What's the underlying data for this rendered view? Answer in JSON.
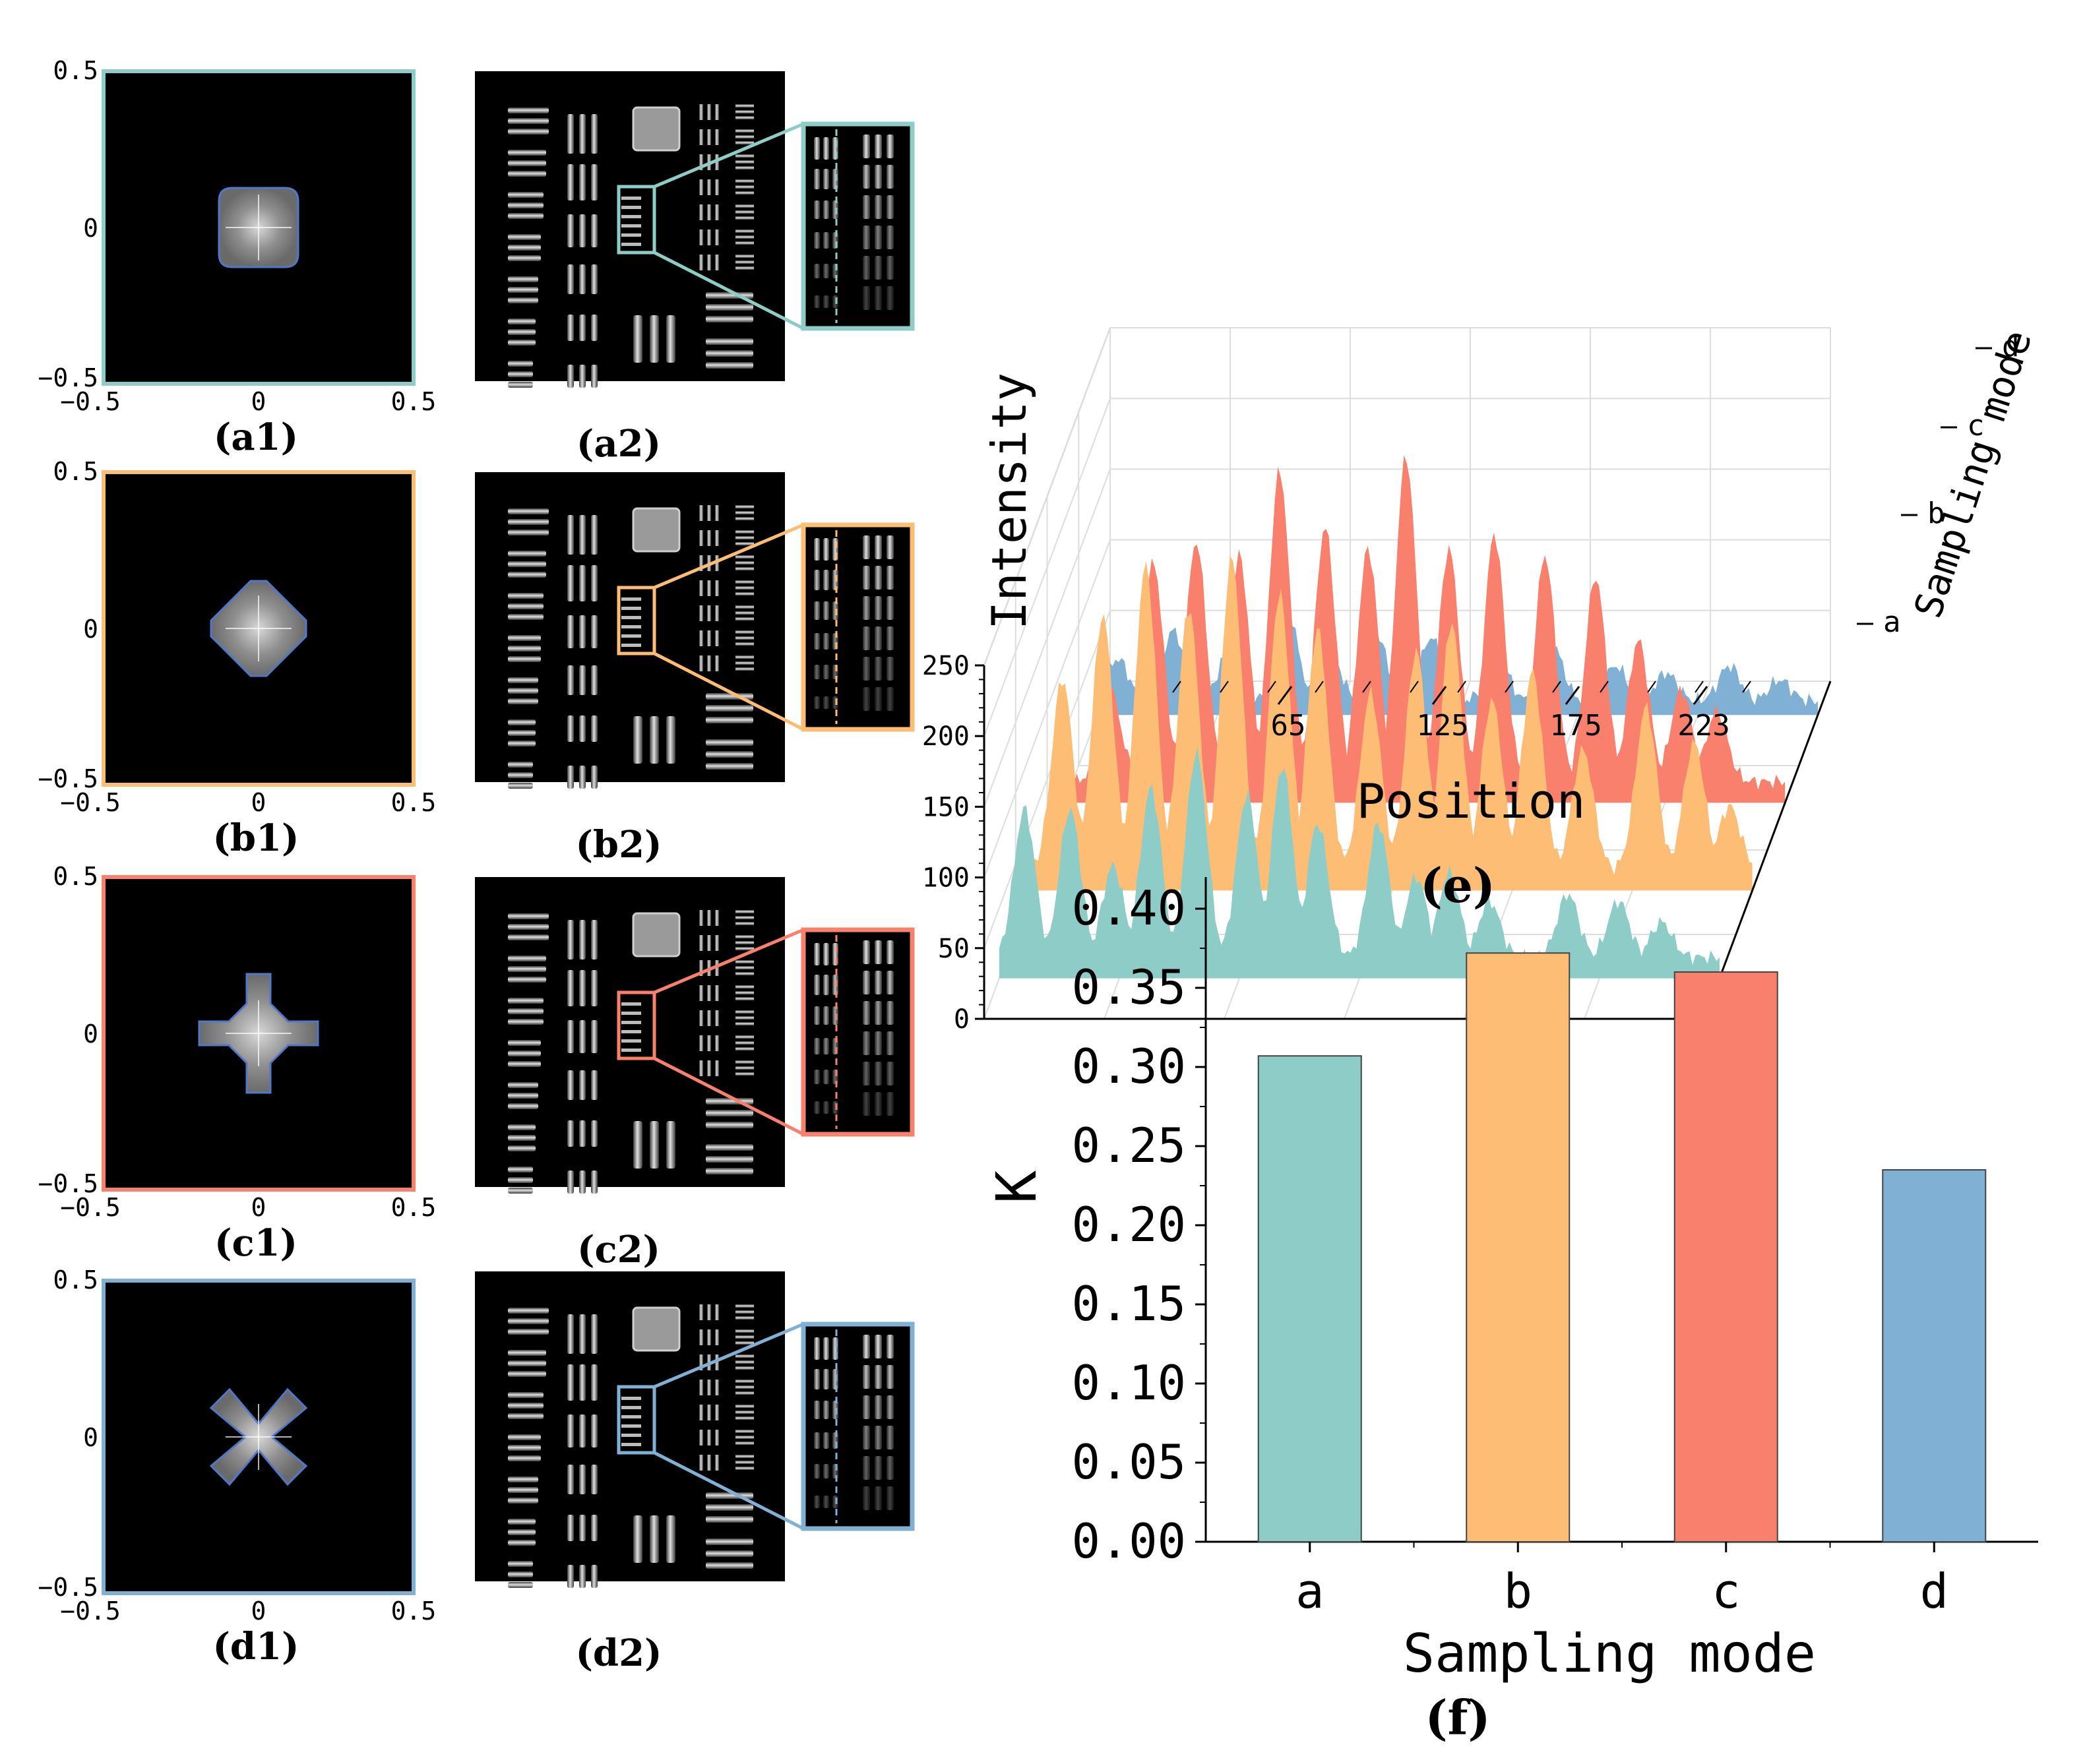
{
  "colors": {
    "a": "#8ecdc7",
    "b": "#fdbd74",
    "c": "#f8806c",
    "d": "#80b0d3",
    "panel_bg": "#000000"
  },
  "spectrum_panels": [
    {
      "label": "(a1)",
      "mode": "a",
      "shape": "square",
      "ticks": [
        "0.5",
        "0",
        "−0.5"
      ],
      "xticks": [
        "−0.5",
        "0",
        "0.5"
      ]
    },
    {
      "label": "(b1)",
      "mode": "b",
      "shape": "diamond",
      "ticks": [
        "0.5",
        "0",
        "−0.5"
      ],
      "xticks": [
        "−0.5",
        "0",
        "0.5"
      ]
    },
    {
      "label": "(c1)",
      "mode": "c",
      "shape": "plus",
      "ticks": [
        "0.5",
        "0",
        "−0.5"
      ],
      "xticks": [
        "−0.5",
        "0",
        "0.5"
      ]
    },
    {
      "label": "(d1)",
      "mode": "d",
      "shape": "x-cross",
      "ticks": [
        "0.5",
        "0",
        "−0.5"
      ],
      "xticks": [
        "−0.5",
        "0",
        "0.5"
      ]
    }
  ],
  "recon_panels": [
    {
      "label": "(a2)",
      "mode": "a"
    },
    {
      "label": "(b2)",
      "mode": "b"
    },
    {
      "label": "(c2)",
      "mode": "c"
    },
    {
      "label": "(d2)",
      "mode": "d"
    }
  ],
  "chart_data": [
    {
      "type": "area",
      "panel_label": "(e)",
      "title": "",
      "xlabel": "Position",
      "ylabel": "Intensity",
      "zlabel": "Sampling mode",
      "x_ticks": [
        "65",
        "125",
        "175",
        "223"
      ],
      "y_ticks": [
        "0",
        "50",
        "100",
        "150",
        "200",
        "250"
      ],
      "ylim": [
        0,
        250
      ],
      "xlim": [
        0,
        285
      ],
      "series": [
        {
          "name": "a",
          "peaks": [
            [
              10,
              120
            ],
            [
              28,
              120
            ],
            [
              45,
              80
            ],
            [
              60,
              135
            ],
            [
              78,
              160
            ],
            [
              98,
              130
            ],
            [
              112,
              150
            ],
            [
              126,
              110
            ],
            [
              150,
              110
            ],
            [
              165,
              72
            ],
            [
              178,
              75
            ],
            [
              194,
              55
            ],
            [
              225,
              60
            ],
            [
              245,
              55
            ],
            [
              262,
              40
            ]
          ],
          "baseline": 15
        },
        {
          "name": "b",
          "peaks": [
            [
              12,
              150
            ],
            [
              28,
              195
            ],
            [
              45,
              230
            ],
            [
              62,
              200
            ],
            [
              79,
              235
            ],
            [
              98,
              210
            ],
            [
              113,
              185
            ],
            [
              134,
              140
            ],
            [
              152,
              170
            ],
            [
              166,
              190
            ],
            [
              182,
              135
            ],
            [
              198,
              155
            ],
            [
              218,
              100
            ],
            [
              243,
              130
            ],
            [
              262,
              105
            ],
            [
              276,
              60
            ]
          ],
          "baseline": 15
        },
        {
          "name": "c",
          "peaks": [
            [
              18,
              80
            ],
            [
              35,
              170
            ],
            [
              52,
              185
            ],
            [
              69,
              175
            ],
            [
              85,
              235
            ],
            [
              103,
              195
            ],
            [
              120,
              180
            ],
            [
              135,
              245
            ],
            [
              152,
              180
            ],
            [
              170,
              190
            ],
            [
              190,
              175
            ],
            [
              210,
              160
            ],
            [
              227,
              115
            ],
            [
              244,
              80
            ],
            [
              258,
              65
            ]
          ],
          "baseline": 15
        },
        {
          "name": "d",
          "peaks": [
            [
              8,
              40
            ],
            [
              30,
              60
            ],
            [
              52,
              45
            ],
            [
              75,
              75
            ],
            [
              92,
              45
            ],
            [
              110,
              60
            ],
            [
              132,
              55
            ],
            [
              158,
              45
            ],
            [
              180,
              50
            ],
            [
              205,
              35
            ],
            [
              225,
              30
            ],
            [
              250,
              35
            ],
            [
              270,
              25
            ]
          ],
          "baseline": 10
        }
      ]
    },
    {
      "type": "bar",
      "panel_label": "(f)",
      "title": "",
      "xlabel": "Sampling mode",
      "ylabel": "K",
      "categories": [
        "a",
        "b",
        "c",
        "d"
      ],
      "values": [
        0.307,
        0.372,
        0.36,
        0.235
      ],
      "ylim": [
        0,
        0.42
      ],
      "y_ticks": [
        "0.00",
        "0.05",
        "0.10",
        "0.15",
        "0.20",
        "0.25",
        "0.30",
        "0.35",
        "0.40"
      ]
    }
  ]
}
